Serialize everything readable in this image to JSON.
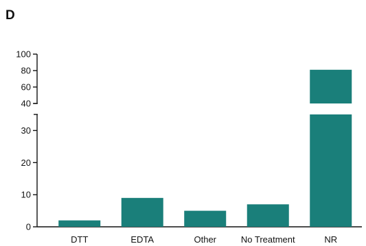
{
  "panel_label": "D",
  "colors": {
    "bar": "#1a7f7a",
    "axis": "#111111",
    "text": "#111111"
  },
  "chart_data": {
    "type": "bar",
    "title": "",
    "xlabel": "",
    "ylabel": "",
    "categories": [
      "DTT",
      "EDTA",
      "Other",
      "No Treatment",
      "NR"
    ],
    "values": [
      2,
      9,
      5,
      7,
      81
    ],
    "axis_break": {
      "lower_segment": [
        0,
        35
      ],
      "upper_segment": [
        40,
        100
      ]
    },
    "lower_ticks": [
      "0",
      "10",
      "20",
      "30"
    ],
    "upper_ticks": [
      "40",
      "60",
      "80",
      "100"
    ],
    "grid": false,
    "legend": "none"
  }
}
